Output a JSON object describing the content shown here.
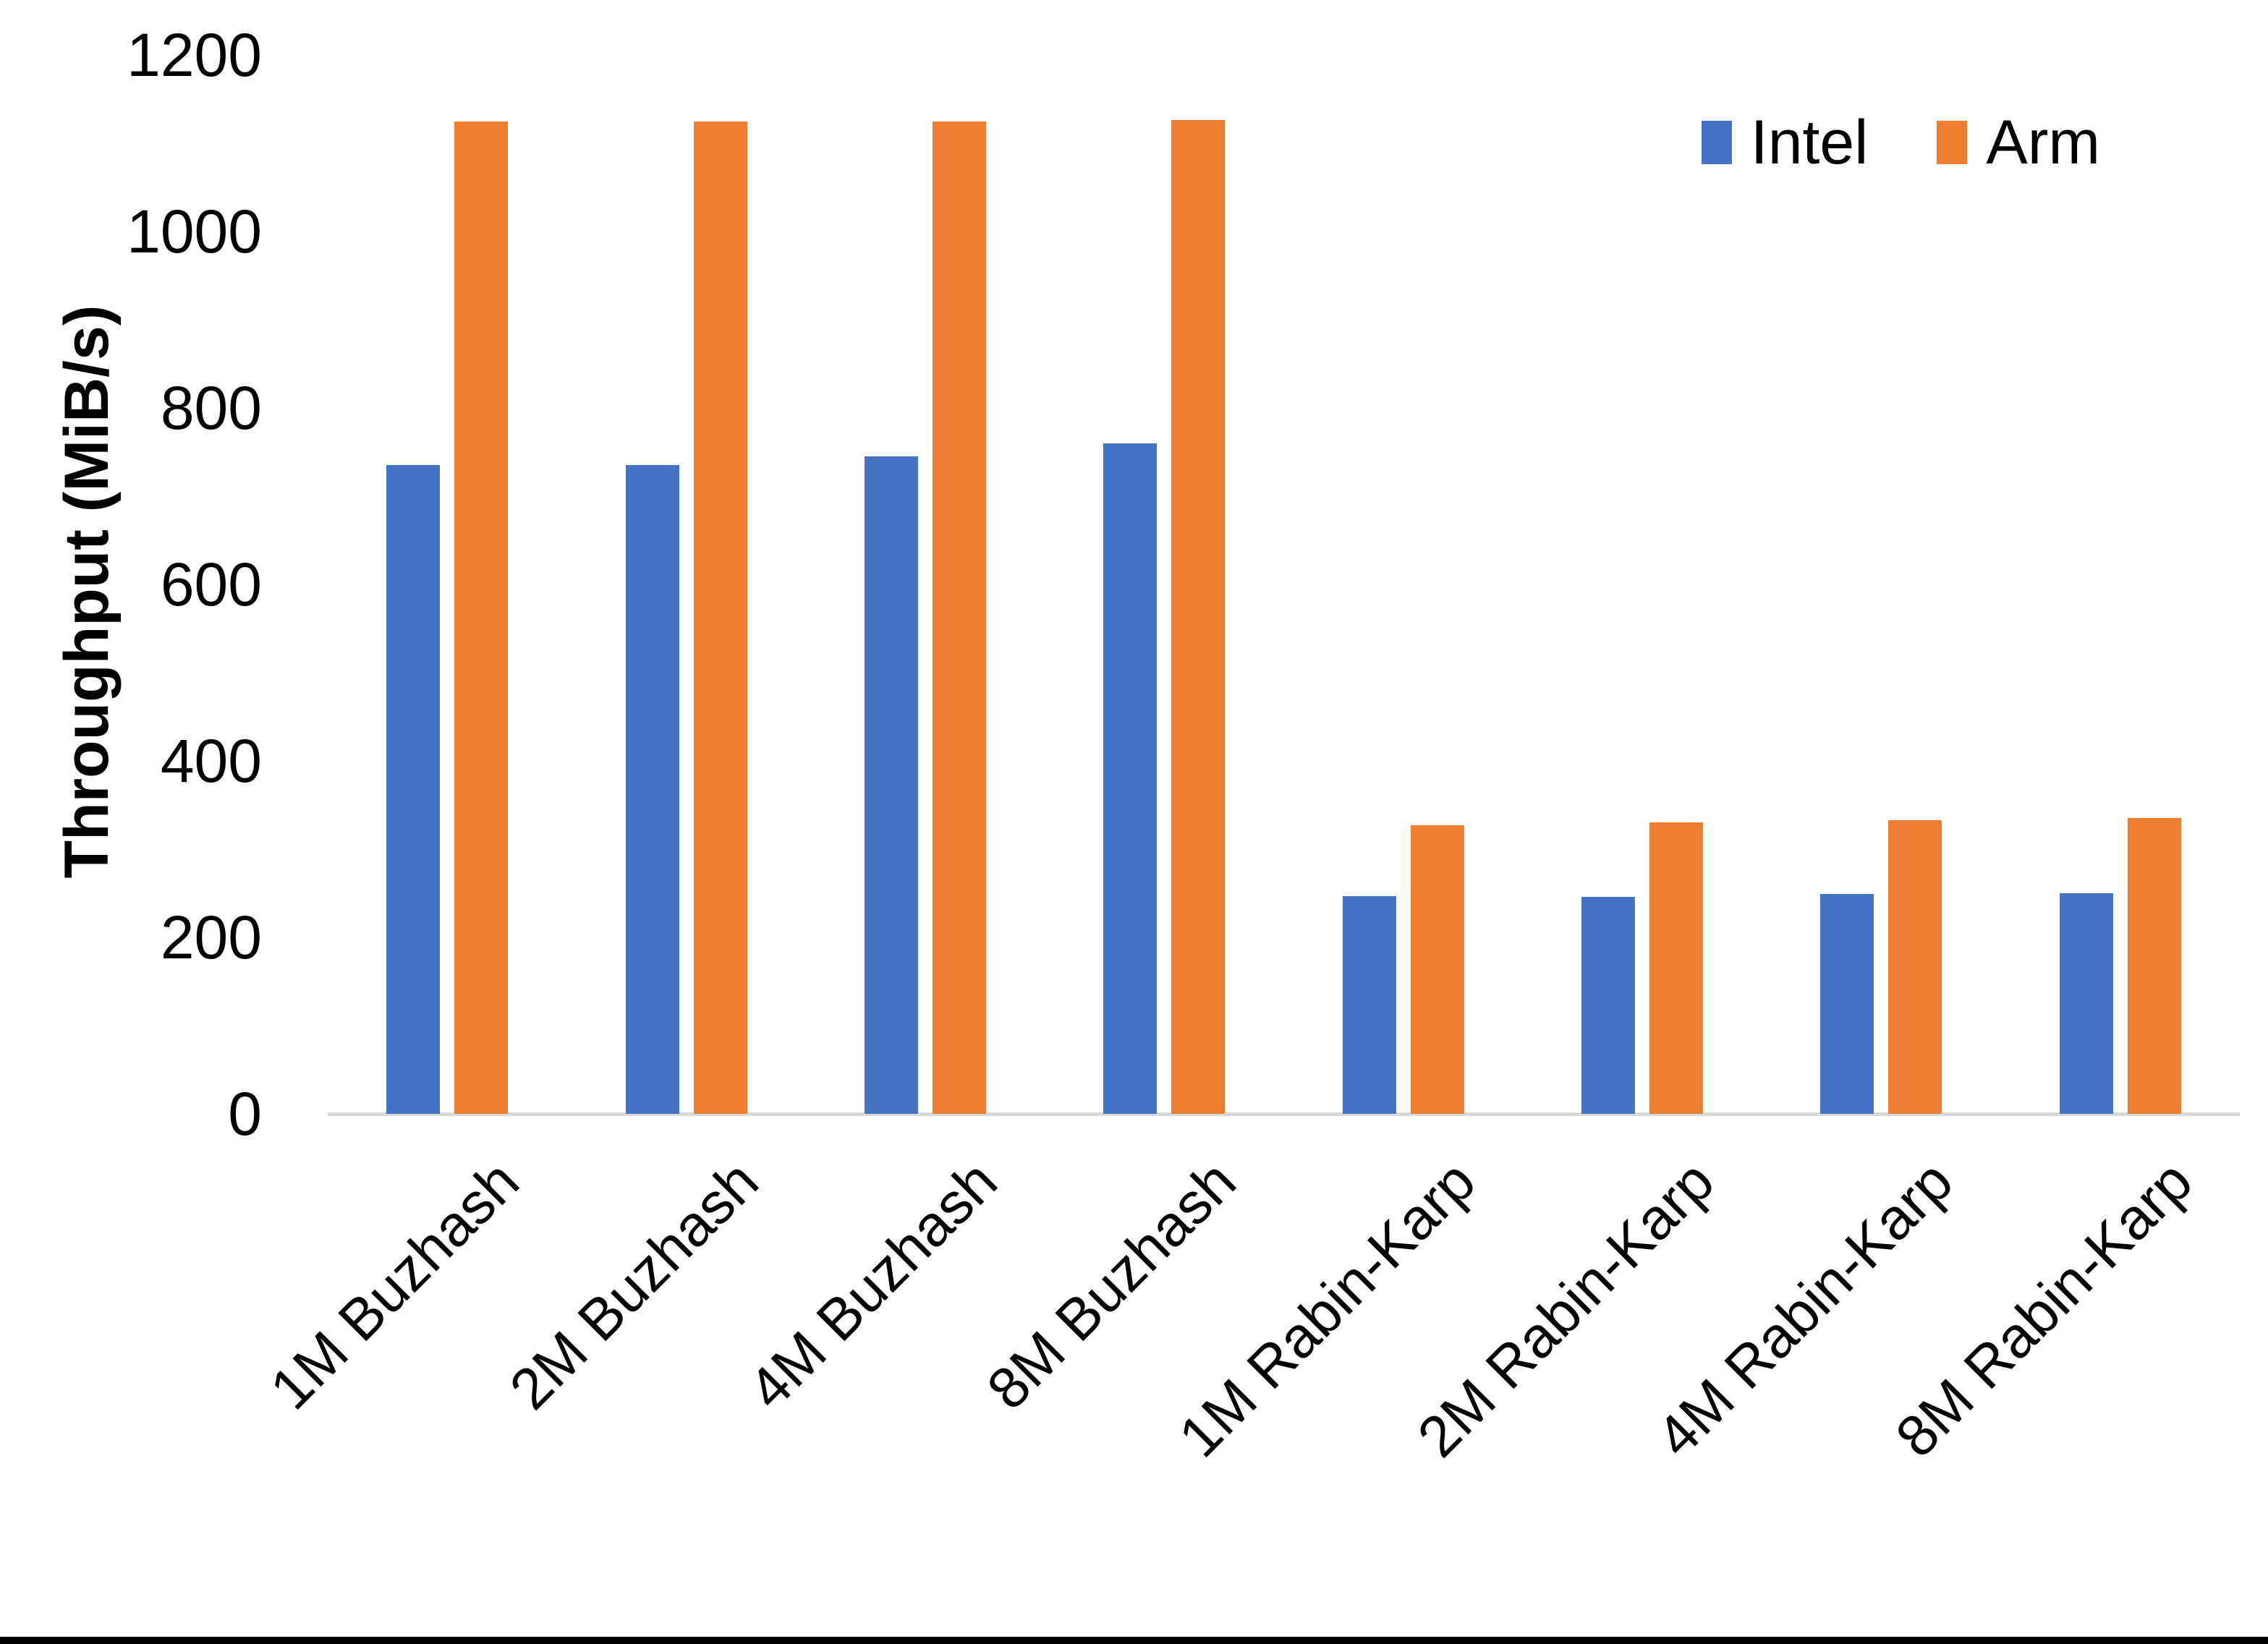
{
  "chart_data": {
    "type": "bar",
    "title": "",
    "xlabel": "",
    "ylabel": "Throughput (MiB/s)",
    "ylim": [
      0,
      1200
    ],
    "y_ticks": [
      0,
      200,
      400,
      600,
      800,
      1000,
      1200
    ],
    "grid": false,
    "legend_position": "top-right",
    "categories": [
      "1M Buzhash",
      "2M Buzhash",
      "4M Buzhash",
      "8M Buzhash",
      "1M Rabin-Karp",
      "2M Rabin-Karp",
      "4M Rabin-Karp",
      "8M Rabin-Karp"
    ],
    "series": [
      {
        "name": "Intel",
        "color": "#4472C4",
        "values": [
          735,
          735,
          745,
          760,
          247,
          246,
          249,
          250
        ]
      },
      {
        "name": "Arm",
        "color": "#ED7D31",
        "values": [
          1125,
          1125,
          1125,
          1126,
          327,
          330,
          333,
          335
        ]
      }
    ]
  },
  "colors": {
    "axis_line": "#D9D9D9",
    "text": "#000000",
    "background": "#FFFFFF",
    "bottom_border": "#000000"
  }
}
